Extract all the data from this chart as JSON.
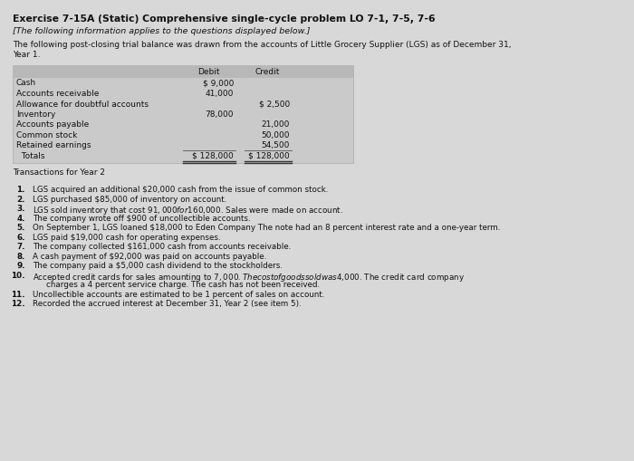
{
  "title": "Exercise 7-15A (Static) Comprehensive single-cycle problem LO 7-1, 7-5, 7-6",
  "subtitle": "[The following information applies to the questions displayed below.]",
  "intro_line1": "The following post-closing trial balance was drawn from the accounts of Little Grocery Supplier (LGS) as of December 31,",
  "intro_line2": "Year 1.",
  "table_rows": [
    [
      "Cash",
      "$ 9,000",
      ""
    ],
    [
      "Accounts receivable",
      "41,000",
      ""
    ],
    [
      "Allowance for doubtful accounts",
      "",
      "$ 2,500"
    ],
    [
      "Inventory",
      "78,000",
      ""
    ],
    [
      "Accounts payable",
      "",
      "21,000"
    ],
    [
      "Common stock",
      "",
      "50,000"
    ],
    [
      "Retained earnings",
      "",
      "54,500"
    ],
    [
      "  Totals",
      "$ 128,000",
      "$ 128,000"
    ]
  ],
  "transactions_label": "Transactions for Year 2",
  "transactions": [
    [
      "1.",
      "LGS acquired an additional $20,000 cash from the issue of common stock."
    ],
    [
      "2.",
      "LGS purchased $85,000 of inventory on account."
    ],
    [
      "3.",
      "LGS sold inventory that cost $91,000 for $160,000. Sales were made on account."
    ],
    [
      "4.",
      "The company wrote off $900 of uncollectible accounts."
    ],
    [
      "5.",
      "On September 1, LGS loaned $18,000 to Eden Company The note had an 8 percent interest rate and a one-year term."
    ],
    [
      "6.",
      "LGS paid $19,000 cash for operating expenses."
    ],
    [
      "7.",
      "The company collected $161,000 cash from accounts receivable."
    ],
    [
      "8.",
      "A cash payment of $92,000 was paid on accounts payable."
    ],
    [
      "9.",
      "The company paid a $5,000 cash dividend to the stockholders."
    ],
    [
      "10.",
      "Accepted credit cards for sales amounting to $7,000. The cost of goods sold was $4,000. The credit card company"
    ],
    [
      "",
      "    charges a 4 percent service charge. The cash has not been received."
    ],
    [
      "11.",
      "Uncollectible accounts are estimated to be 1 percent of sales on account."
    ],
    [
      "12.",
      "Recorded the accrued interest at December 31, Year 2 (see item 5)."
    ]
  ],
  "bg_color": "#d8d8d8",
  "table_bg": "#cacaca",
  "header_bg": "#b8b8b8",
  "text_color": "#111111",
  "title_fontsize": 7.8,
  "subtitle_fontsize": 6.8,
  "body_fontsize": 6.5,
  "table_fontsize": 6.5,
  "trans_fontsize": 6.3
}
